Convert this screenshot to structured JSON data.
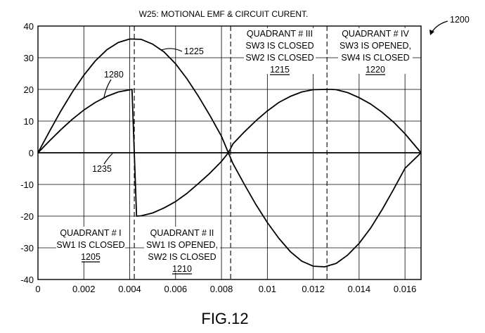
{
  "chart_data": {
    "type": "line",
    "title": "W25: MOTIONAL EMF & CIRCUIT CURENT.",
    "figure_label": "FIG.12",
    "figure_ref": "1200",
    "xlabel": "",
    "ylabel": "",
    "xlim": [
      0,
      0.0167
    ],
    "ylim": [
      -40,
      40
    ],
    "x_ticks": [
      0,
      0.002,
      0.004,
      0.006,
      0.008,
      0.01,
      0.012,
      0.014,
      0.016
    ],
    "x_tick_labels": [
      "0",
      "0.002",
      "0.004",
      "0.006",
      "0.008",
      "0.01",
      "0.012",
      "0.014",
      "0.016"
    ],
    "y_ticks": [
      -40,
      -30,
      -20,
      -10,
      0,
      10,
      20,
      30,
      40
    ],
    "y_tick_labels": [
      "-40",
      "-30",
      "-20",
      "-10",
      "0",
      "10",
      "20",
      "30",
      "40"
    ],
    "grid": true,
    "series": [
      {
        "name": "1225",
        "x": [
          0,
          0.0005,
          0.001,
          0.0015,
          0.002,
          0.0025,
          0.003,
          0.0035,
          0.004,
          0.0045,
          0.005,
          0.0055,
          0.006,
          0.0065,
          0.007,
          0.0075,
          0.008,
          0.0083,
          0.0085,
          0.009,
          0.0095,
          0.01,
          0.0105,
          0.011,
          0.0115,
          0.012,
          0.0125,
          0.013,
          0.0135,
          0.014,
          0.0145,
          0.015,
          0.0155,
          0.016,
          0.0167
        ],
        "y": [
          0,
          6.7,
          13.2,
          19.2,
          24.5,
          29.0,
          32.5,
          34.8,
          35.9,
          35.8,
          34.3,
          31.8,
          28.1,
          23.3,
          17.8,
          11.7,
          5.2,
          0,
          -3.4,
          -10.0,
          -16.3,
          -22.0,
          -27.0,
          -31.2,
          -34.2,
          -35.8,
          -36.0,
          -34.9,
          -32.3,
          -28.6,
          -23.8,
          -18.0,
          -11.6,
          -4.9,
          0
        ]
      },
      {
        "name": "1280",
        "x": [
          0,
          0.0005,
          0.001,
          0.0015,
          0.002,
          0.0025,
          0.003,
          0.0035,
          0.0041,
          0.0043,
          0.0045,
          0.005,
          0.0055,
          0.006,
          0.0065,
          0.007,
          0.0075,
          0.008,
          0.0083,
          0.0085,
          0.009,
          0.0095,
          0.01,
          0.0105,
          0.011,
          0.0115,
          0.012,
          0.0126,
          0.0128,
          0.013,
          0.0135,
          0.014,
          0.0145,
          0.015,
          0.0155,
          0.016,
          0.0167
        ],
        "y": [
          0,
          3.7,
          7.3,
          10.6,
          13.5,
          15.9,
          17.8,
          19.2,
          20.0,
          -20.0,
          -19.9,
          -19.0,
          -17.4,
          -15.4,
          -12.8,
          -9.7,
          -6.4,
          -2.7,
          0,
          2.8,
          6.6,
          10.1,
          13.2,
          15.9,
          17.8,
          19.2,
          19.9,
          20.0,
          20.0,
          19.9,
          19.0,
          17.4,
          15.4,
          12.8,
          9.7,
          6.0,
          0
        ]
      },
      {
        "name": "1235",
        "x": [
          0,
          0.0167
        ],
        "y": [
          0,
          0
        ]
      }
    ],
    "dashed_lines_x": [
      0.0042,
      0.0084,
      0.0126
    ],
    "annotations": [
      {
        "id": "q1",
        "lines": [
          "QUADRANT # I",
          "SW1 IS CLOSED"
        ],
        "ref": "1205"
      },
      {
        "id": "q2",
        "lines": [
          "QUADRANT # II",
          "SW1 IS OPENED,",
          "SW2 IS CLOSED"
        ],
        "ref": "1210"
      },
      {
        "id": "q3",
        "lines": [
          "QUADRANT # III",
          "SW3 IS CLOSED",
          "SW2 IS CLOSED"
        ],
        "ref": "1215"
      },
      {
        "id": "q4",
        "lines": [
          "QUADRANT # IV",
          "SW3 IS OPENED,",
          "SW4 IS CLOSED"
        ],
        "ref": "1220"
      }
    ],
    "callouts": [
      "1225",
      "1280",
      "1235"
    ]
  }
}
